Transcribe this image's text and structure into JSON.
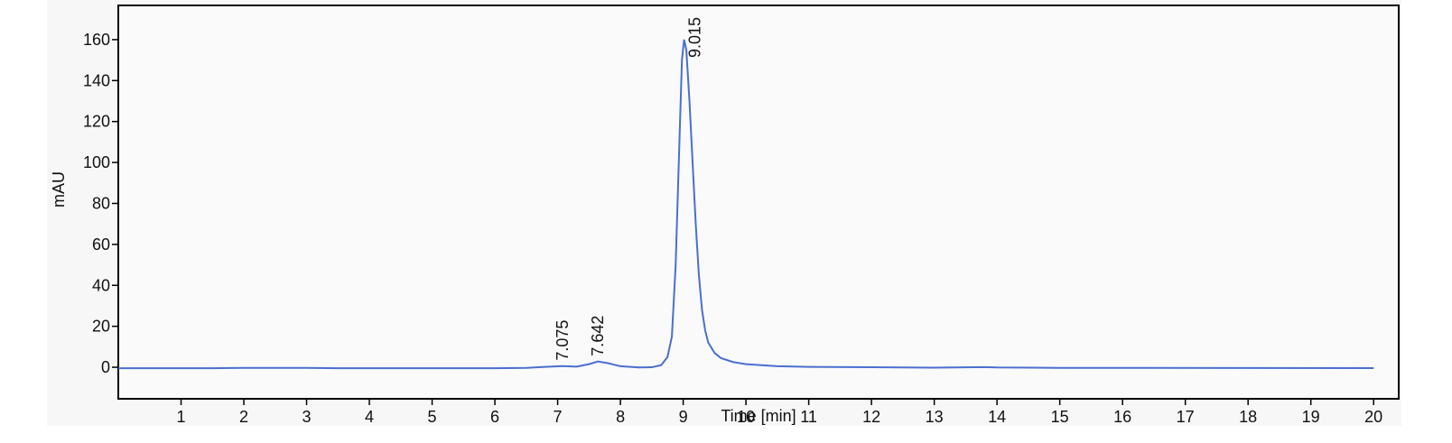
{
  "chart_data": {
    "type": "line",
    "x_label": "Time [min]",
    "y_label": "mAU",
    "color": "#4a6fd0",
    "x": [
      0,
      1.5,
      2,
      3,
      3.5,
      6,
      6.5,
      6.8,
      7.075,
      7.3,
      7.5,
      7.642,
      7.8,
      8,
      8.3,
      8.5,
      8.65,
      8.75,
      8.82,
      8.88,
      8.94,
      8.98,
      9.015,
      9.05,
      9.1,
      9.15,
      9.2,
      9.25,
      9.3,
      9.35,
      9.4,
      9.5,
      9.6,
      9.8,
      10,
      10.5,
      11,
      12,
      13,
      13.8,
      14,
      15,
      20
    ],
    "values": [
      -0.5,
      -0.5,
      -0.3,
      -0.3,
      -0.5,
      -0.5,
      -0.3,
      0.2,
      0.6,
      0.3,
      1.5,
      2.8,
      2,
      0.5,
      -0.1,
      0,
      1,
      5,
      15,
      50,
      110,
      150,
      160,
      155,
      130,
      100,
      70,
      45,
      28,
      18,
      12,
      7,
      4.5,
      2.5,
      1.5,
      0.5,
      0.2,
      0,
      -0.2,
      0.1,
      -0.1,
      -0.3,
      -0.4
    ],
    "annotations": [
      {
        "text": "7.075",
        "x": 7.075,
        "y": 0.6
      },
      {
        "text": "7.642",
        "x": 7.642,
        "y": 2.8
      },
      {
        "text": "9.015",
        "x": 9.015,
        "y": 160
      }
    ],
    "xlim": [
      0,
      20.4
    ],
    "ylim": [
      -15.4,
      176.7
    ],
    "xticks": [
      1,
      2,
      3,
      4,
      5,
      6,
      7,
      8,
      9,
      10,
      11,
      12,
      13,
      14,
      15,
      16,
      17,
      18,
      19,
      20
    ],
    "yticks": [
      0,
      20,
      40,
      60,
      80,
      100,
      120,
      140,
      160
    ]
  }
}
